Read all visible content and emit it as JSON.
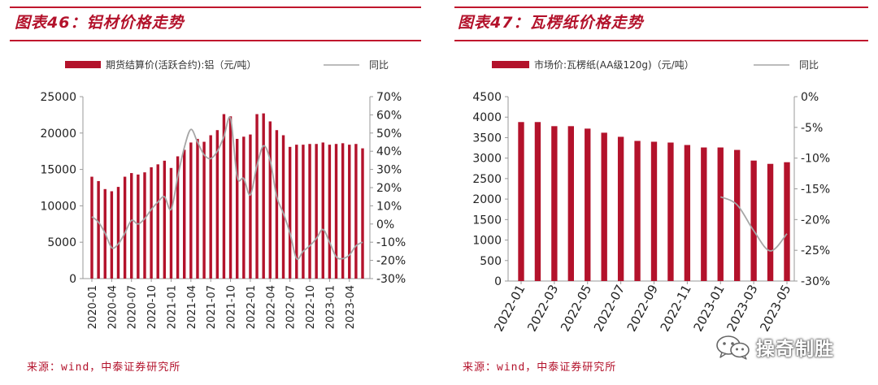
{
  "colors": {
    "accent": "#b3122b",
    "bar": "#b3122b",
    "line": "#a6a6a6",
    "rule": "#c0162d"
  },
  "left_panel": {
    "title": "图表46：铝材价格走势",
    "source": "来源：wind，中泰证券研究所"
  },
  "right_panel": {
    "title": "图表47：瓦楞纸价格走势",
    "source": "来源：wind，中泰证券研究所"
  },
  "watermark": {
    "text": "操奇制胜",
    "icon": "wechat-icon"
  },
  "chart_data": [
    {
      "type": "bar",
      "title": "图表46：铝材价格走势",
      "series": [
        {
          "name": "期货结算价(活跃合约):铝（元/吨）",
          "kind": "bar",
          "axis": "left",
          "values": [
            14000,
            13400,
            12300,
            12000,
            12600,
            14000,
            14500,
            14300,
            14600,
            15300,
            15700,
            16200,
            15200,
            16800,
            17700,
            18700,
            19200,
            18800,
            19700,
            20400,
            22600,
            22300,
            19200,
            19500,
            19800,
            22600,
            22700,
            21600,
            20400,
            19700,
            18100,
            18400,
            18400,
            18500,
            18500,
            18700,
            18400,
            18500,
            18600,
            18400,
            18500,
            17900
          ]
        },
        {
          "name": "同比",
          "kind": "line",
          "axis": "right",
          "values": [
            4,
            1,
            -5,
            -13,
            -11,
            -5,
            2,
            0,
            3,
            8,
            12,
            15,
            8,
            26,
            42,
            52,
            45,
            38,
            36,
            40,
            48,
            58,
            26,
            25,
            16,
            32,
            43,
            35,
            15,
            6,
            -5,
            -19,
            -15,
            -12,
            -8,
            -3,
            -10,
            -18,
            -19,
            -17,
            -12,
            -10
          ]
        }
      ],
      "x_tick_labels": [
        "2020-01",
        "2020-04",
        "2020-07",
        "2020-10",
        "2021-01",
        "2021-04",
        "2021-07",
        "2021-10",
        "2022-01",
        "2022-04",
        "2022-07",
        "2022-10",
        "2023-01",
        "2023-04"
      ],
      "y_left": {
        "min": 0,
        "max": 25000,
        "ticks": [
          "0",
          "5000",
          "10000",
          "15000",
          "20000",
          "25000"
        ]
      },
      "y_right": {
        "min": -30,
        "max": 70,
        "ticks": [
          "-30%",
          "-20%",
          "-10%",
          "0%",
          "10%",
          "20%",
          "30%",
          "40%",
          "50%",
          "60%",
          "70%"
        ]
      },
      "grid": false,
      "legend": "top"
    },
    {
      "type": "bar",
      "title": "图表47：瓦楞纸价格走势",
      "series": [
        {
          "name": "市场价:瓦楞纸(AA级120g)（元/吨）",
          "kind": "bar",
          "axis": "left",
          "values": [
            3880,
            3880,
            3780,
            3780,
            3720,
            3620,
            3520,
            3420,
            3400,
            3380,
            3320,
            3260,
            3260,
            3200,
            2940,
            2860,
            2900
          ]
        },
        {
          "name": "同比",
          "kind": "line",
          "axis": "right",
          "values": [
            null,
            null,
            null,
            null,
            null,
            null,
            null,
            null,
            null,
            null,
            null,
            null,
            -16.3,
            -17.6,
            -21.8,
            -25.1,
            -22.3
          ]
        }
      ],
      "x_tick_labels": [
        "2022-01",
        "2022-03",
        "2022-05",
        "2022-07",
        "2022-09",
        "2022-11",
        "2023-01",
        "2023-03",
        "2023-05"
      ],
      "y_left": {
        "min": 0,
        "max": 4500,
        "ticks": [
          "0",
          "500",
          "1000",
          "1500",
          "2000",
          "2500",
          "3000",
          "3500",
          "4000",
          "4500"
        ]
      },
      "y_right": {
        "min": -30,
        "max": 0,
        "ticks": [
          "-30%",
          "-25%",
          "-20%",
          "-15%",
          "-10%",
          "-5%",
          "0%"
        ]
      },
      "grid": false,
      "legend": "top"
    }
  ]
}
